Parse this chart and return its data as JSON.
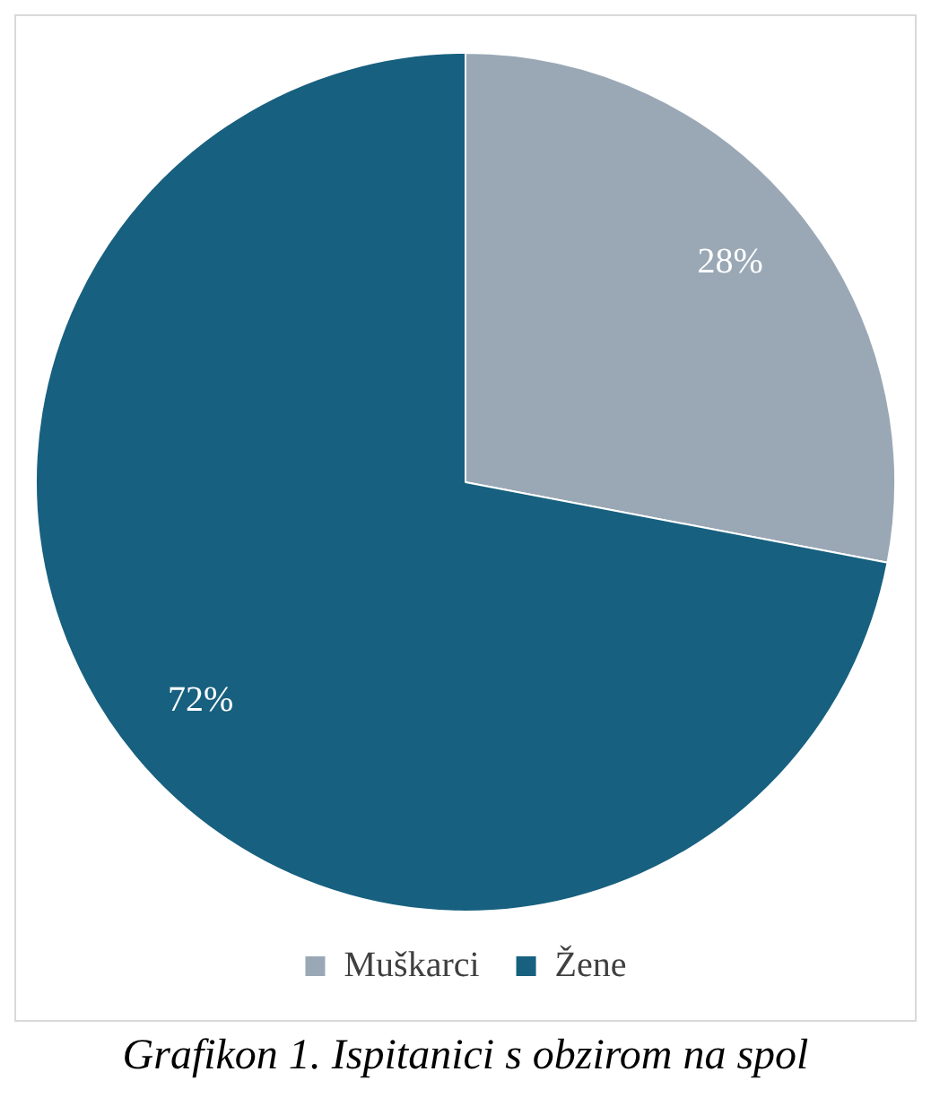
{
  "chart_data": {
    "type": "pie",
    "categories": [
      "Muškarci",
      "Žene"
    ],
    "values": [
      28,
      72
    ],
    "colors": [
      "#9aa8b5",
      "#17607f"
    ],
    "value_labels": [
      "28%",
      "72%"
    ],
    "legend": "bottom",
    "annotations": [
      "Grafikon 1. Ispitanici s obzirom na spol"
    ]
  }
}
